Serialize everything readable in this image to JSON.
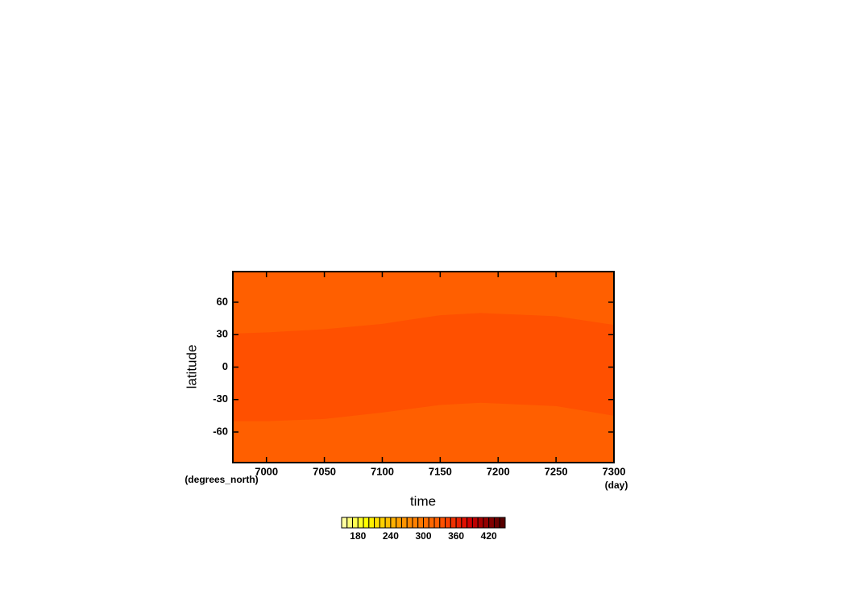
{
  "chart_data": {
    "type": "contour",
    "x_label": "time",
    "x_units": "(day)",
    "y_label": "latitude",
    "y_units": "(degrees_north)",
    "xlim": [
      6971,
      7300
    ],
    "ylim": [
      -88.3,
      88.3
    ],
    "xticks": [
      7000,
      7050,
      7100,
      7150,
      7200,
      7250,
      7300
    ],
    "yticks": [
      -60,
      -30,
      0,
      30,
      60
    ],
    "colorbar": {
      "levels": [
        150,
        160,
        170,
        180,
        190,
        200,
        210,
        220,
        230,
        240,
        250,
        260,
        270,
        280,
        290,
        300,
        310,
        320,
        330,
        340,
        350,
        360,
        370,
        380,
        390,
        400,
        410,
        420,
        430,
        440,
        450
      ],
      "colors": [
        "#ffffa0",
        "#ffff78",
        "#ffff50",
        "#ffff28",
        "#ffff00",
        "#fff000",
        "#ffe000",
        "#ffd000",
        "#ffc000",
        "#ffb000",
        "#ffa000",
        "#ff9400",
        "#ff8800",
        "#ff8000",
        "#ff7800",
        "#ff6e00",
        "#ff6600",
        "#ff5f00",
        "#ff5000",
        "#f84000",
        "#f03000",
        "#e82000",
        "#e01000",
        "#d00000",
        "#bc0000",
        "#a80000",
        "#940000",
        "#800000",
        "#6c0000",
        "#580000"
      ],
      "ticks": [
        180,
        240,
        300,
        360,
        420
      ]
    },
    "regions": [
      {
        "value": 325,
        "x": [
          6971,
          7300
        ],
        "lower": [
          -88.3,
          -88.3
        ],
        "upper": [
          88.3,
          88.3
        ]
      },
      {
        "value": 335,
        "x": [
          6971,
          7000,
          7050,
          7100,
          7150,
          7185,
          7250,
          7300
        ],
        "lower": [
          -50,
          -50,
          -48,
          -42,
          -35,
          -33,
          -36,
          -45
        ],
        "upper": [
          31,
          32,
          35,
          40,
          48,
          50,
          47,
          39
        ]
      }
    ]
  }
}
